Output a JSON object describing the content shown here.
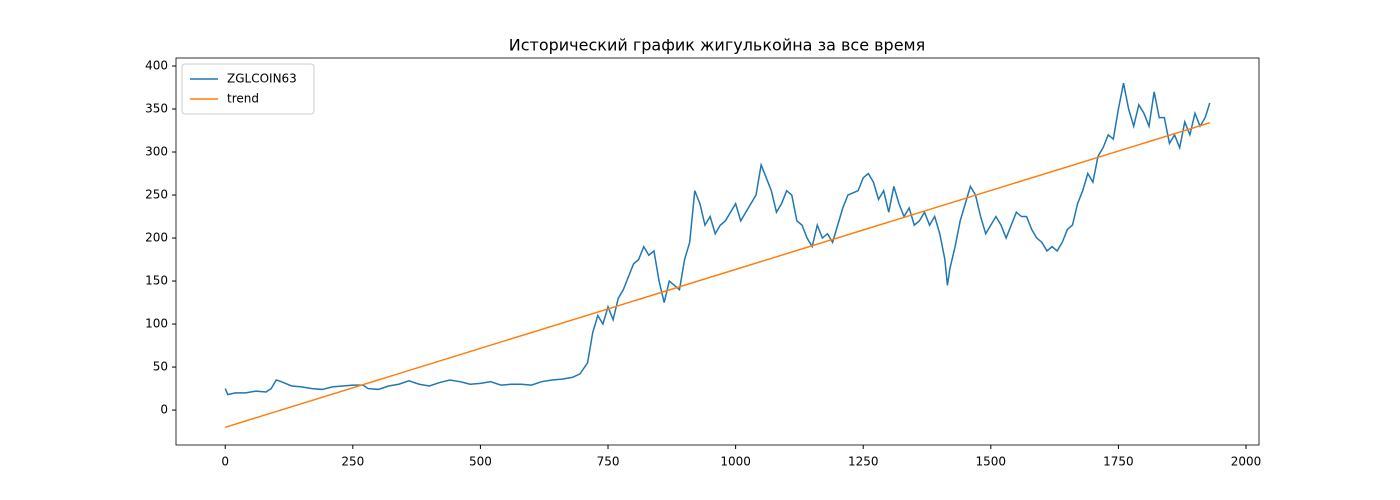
{
  "chart_data": {
    "type": "line",
    "title": "Исторический график жигулькойна за все время",
    "xlim": [
      -96.45,
      2025.45
    ],
    "ylim": [
      -40.6,
      409.3
    ],
    "xticks": [
      0,
      250,
      500,
      750,
      1000,
      1250,
      1500,
      1750,
      2000
    ],
    "yticks": [
      0,
      50,
      100,
      150,
      200,
      250,
      300,
      350,
      400
    ],
    "grid": false,
    "legend": "upper-left",
    "series": [
      {
        "name": "ZGLCOIN63",
        "color": "#1f77b4",
        "x": [
          0,
          5,
          20,
          40,
          60,
          80,
          90,
          100,
          110,
          130,
          150,
          170,
          190,
          210,
          230,
          250,
          270,
          280,
          300,
          320,
          340,
          360,
          380,
          400,
          420,
          440,
          460,
          480,
          500,
          520,
          540,
          560,
          580,
          600,
          620,
          640,
          660,
          680,
          695,
          710,
          720,
          730,
          740,
          750,
          760,
          770,
          780,
          790,
          800,
          810,
          820,
          830,
          840,
          850,
          860,
          870,
          880,
          890,
          900,
          910,
          920,
          930,
          940,
          950,
          960,
          970,
          980,
          990,
          1000,
          1010,
          1020,
          1040,
          1050,
          1060,
          1070,
          1080,
          1090,
          1100,
          1110,
          1120,
          1130,
          1140,
          1150,
          1160,
          1170,
          1180,
          1190,
          1200,
          1210,
          1220,
          1240,
          1250,
          1260,
          1270,
          1280,
          1290,
          1300,
          1310,
          1320,
          1330,
          1340,
          1350,
          1360,
          1370,
          1380,
          1390,
          1400,
          1410,
          1415,
          1420,
          1430,
          1440,
          1450,
          1460,
          1470,
          1480,
          1490,
          1500,
          1510,
          1520,
          1530,
          1540,
          1550,
          1560,
          1570,
          1580,
          1590,
          1600,
          1610,
          1620,
          1630,
          1640,
          1650,
          1660,
          1670,
          1680,
          1690,
          1700,
          1710,
          1720,
          1730,
          1740,
          1750,
          1760,
          1770,
          1780,
          1790,
          1800,
          1810,
          1820,
          1830,
          1840,
          1850,
          1860,
          1870,
          1880,
          1890,
          1900,
          1910,
          1920,
          1929
        ],
        "values": [
          25,
          18,
          20,
          20,
          22,
          21,
          25,
          35,
          33,
          28,
          27,
          25,
          24,
          27,
          28,
          29,
          29,
          25,
          24,
          28,
          30,
          34,
          30,
          28,
          32,
          35,
          33,
          30,
          31,
          33,
          29,
          30,
          30,
          29,
          33,
          35,
          36,
          38,
          42,
          55,
          90,
          110,
          100,
          120,
          105,
          130,
          140,
          155,
          170,
          175,
          190,
          180,
          185,
          150,
          125,
          150,
          145,
          140,
          175,
          195,
          255,
          240,
          215,
          225,
          205,
          215,
          220,
          230,
          240,
          220,
          230,
          250,
          285,
          270,
          255,
          230,
          240,
          255,
          250,
          220,
          215,
          200,
          190,
          215,
          200,
          205,
          195,
          215,
          235,
          250,
          255,
          270,
          275,
          265,
          245,
          255,
          230,
          260,
          240,
          225,
          235,
          215,
          220,
          230,
          215,
          225,
          205,
          175,
          145,
          165,
          190,
          220,
          240,
          260,
          250,
          225,
          205,
          215,
          225,
          215,
          200,
          215,
          230,
          225,
          225,
          210,
          200,
          195,
          185,
          190,
          185,
          195,
          210,
          215,
          240,
          255,
          275,
          265,
          295,
          305,
          320,
          315,
          350,
          380,
          350,
          330,
          355,
          345,
          330,
          370,
          340,
          340,
          310,
          320,
          305,
          335,
          320,
          345,
          330,
          340,
          357
        ]
      },
      {
        "name": "trend",
        "color": "#ff7f0e",
        "x": [
          0,
          1929
        ],
        "values": [
          -20,
          334
        ]
      }
    ]
  }
}
